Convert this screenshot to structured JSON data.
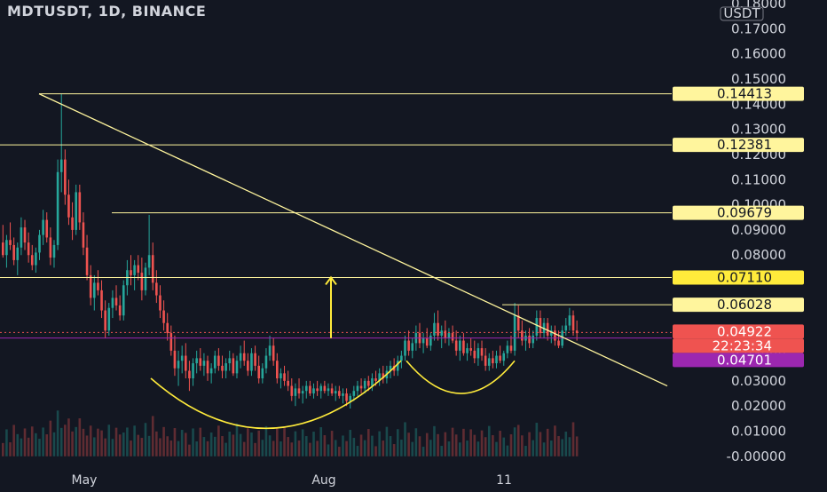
{
  "title": "MDTUSDT, 1D, BINANCE",
  "currency_badge": "USDT",
  "colors": {
    "background": "#131722",
    "up": "#26a69a",
    "down": "#ef5350",
    "drawing": "#fff59d",
    "drawing_hl": "#ffeb3b",
    "price_tag": "#ef5350",
    "purple_tag": "#9c27b0",
    "grid_text": "#d1d4dc"
  },
  "chart_data": {
    "type": "candlestick",
    "ylim": [
      -0.005,
      0.18
    ],
    "y_ticks": [
      "0.18000",
      "0.17000",
      "0.16000",
      "0.15000",
      "0.14000",
      "0.13000",
      "0.12000",
      "0.11000",
      "0.10000",
      "0.09000",
      "0.08000",
      "0.07000",
      "0.06000",
      "0.05000",
      "0.04000",
      "0.03000",
      "0.02000",
      "0.01000",
      "0.00000"
    ],
    "x_tick_labels": [
      "May",
      "Aug",
      "11"
    ],
    "price_tags": [
      {
        "label": "0.14413",
        "value": 0.14413,
        "style": "yellow"
      },
      {
        "label": "0.12381",
        "value": 0.12381,
        "style": "yellow"
      },
      {
        "label": "0.09679",
        "value": 0.09679,
        "style": "yellow"
      },
      {
        "label": "0.07110",
        "value": 0.0711,
        "style": "yellow-bright"
      },
      {
        "label": "0.06028",
        "value": 0.06028,
        "style": "yellow"
      },
      {
        "label": "0.04922",
        "value": 0.04922,
        "style": "red"
      },
      {
        "label": "22:23:34",
        "value": 0.045,
        "style": "red-sub"
      },
      {
        "label": "0.04701",
        "value": 0.04701,
        "style": "purple"
      }
    ],
    "horizontal_levels": [
      0.14413,
      0.12381,
      0.09679,
      0.0711,
      0.06028
    ],
    "current_price": 0.04922,
    "previous_level": 0.04701,
    "candles": [
      [
        0.085,
        0.092,
        0.079,
        0.08
      ],
      [
        0.08,
        0.088,
        0.075,
        0.086
      ],
      [
        0.086,
        0.093,
        0.082,
        0.084
      ],
      [
        0.084,
        0.087,
        0.076,
        0.078
      ],
      [
        0.078,
        0.085,
        0.072,
        0.083
      ],
      [
        0.083,
        0.095,
        0.08,
        0.091
      ],
      [
        0.091,
        0.094,
        0.082,
        0.085
      ],
      [
        0.085,
        0.089,
        0.077,
        0.08
      ],
      [
        0.08,
        0.084,
        0.074,
        0.076
      ],
      [
        0.076,
        0.083,
        0.073,
        0.081
      ],
      [
        0.081,
        0.09,
        0.078,
        0.088
      ],
      [
        0.088,
        0.098,
        0.084,
        0.094
      ],
      [
        0.094,
        0.097,
        0.085,
        0.087
      ],
      [
        0.087,
        0.091,
        0.076,
        0.079
      ],
      [
        0.079,
        0.086,
        0.075,
        0.084
      ],
      [
        0.084,
        0.118,
        0.082,
        0.113
      ],
      [
        0.113,
        0.144,
        0.105,
        0.118
      ],
      [
        0.118,
        0.122,
        0.1,
        0.104
      ],
      [
        0.104,
        0.11,
        0.092,
        0.095
      ],
      [
        0.095,
        0.101,
        0.086,
        0.09
      ],
      [
        0.09,
        0.108,
        0.088,
        0.105
      ],
      [
        0.105,
        0.108,
        0.09,
        0.093
      ],
      [
        0.093,
        0.097,
        0.08,
        0.083
      ],
      [
        0.083,
        0.088,
        0.07,
        0.072
      ],
      [
        0.072,
        0.076,
        0.06,
        0.063
      ],
      [
        0.063,
        0.072,
        0.058,
        0.069
      ],
      [
        0.069,
        0.074,
        0.064,
        0.066
      ],
      [
        0.066,
        0.07,
        0.055,
        0.058
      ],
      [
        0.058,
        0.062,
        0.047,
        0.05
      ],
      [
        0.05,
        0.061,
        0.048,
        0.059
      ],
      [
        0.059,
        0.066,
        0.055,
        0.063
      ],
      [
        0.063,
        0.068,
        0.058,
        0.06
      ],
      [
        0.06,
        0.064,
        0.054,
        0.056
      ],
      [
        0.056,
        0.07,
        0.054,
        0.068
      ],
      [
        0.068,
        0.078,
        0.064,
        0.074
      ],
      [
        0.074,
        0.08,
        0.068,
        0.072
      ],
      [
        0.072,
        0.078,
        0.066,
        0.076
      ],
      [
        0.076,
        0.08,
        0.07,
        0.073
      ],
      [
        0.073,
        0.079,
        0.062,
        0.066
      ],
      [
        0.066,
        0.077,
        0.064,
        0.075
      ],
      [
        0.075,
        0.096,
        0.072,
        0.08
      ],
      [
        0.08,
        0.085,
        0.066,
        0.069
      ],
      [
        0.069,
        0.074,
        0.061,
        0.064
      ],
      [
        0.064,
        0.068,
        0.055,
        0.058
      ],
      [
        0.058,
        0.062,
        0.05,
        0.053
      ],
      [
        0.053,
        0.057,
        0.046,
        0.049
      ],
      [
        0.049,
        0.052,
        0.04,
        0.042
      ],
      [
        0.042,
        0.048,
        0.032,
        0.035
      ],
      [
        0.035,
        0.042,
        0.028,
        0.038
      ],
      [
        0.038,
        0.044,
        0.033,
        0.04
      ],
      [
        0.04,
        0.045,
        0.031,
        0.034
      ],
      [
        0.034,
        0.038,
        0.026,
        0.031
      ],
      [
        0.031,
        0.039,
        0.028,
        0.037
      ],
      [
        0.037,
        0.042,
        0.033,
        0.039
      ],
      [
        0.039,
        0.043,
        0.034,
        0.036
      ],
      [
        0.036,
        0.041,
        0.032,
        0.038
      ],
      [
        0.038,
        0.04,
        0.03,
        0.033
      ],
      [
        0.033,
        0.037,
        0.029,
        0.035
      ],
      [
        0.035,
        0.042,
        0.033,
        0.04
      ],
      [
        0.04,
        0.043,
        0.034,
        0.036
      ],
      [
        0.036,
        0.04,
        0.031,
        0.034
      ],
      [
        0.034,
        0.039,
        0.031,
        0.037
      ],
      [
        0.037,
        0.042,
        0.034,
        0.039
      ],
      [
        0.039,
        0.041,
        0.032,
        0.033
      ],
      [
        0.033,
        0.04,
        0.031,
        0.038
      ],
      [
        0.038,
        0.044,
        0.035,
        0.041
      ],
      [
        0.041,
        0.046,
        0.036,
        0.038
      ],
      [
        0.038,
        0.041,
        0.032,
        0.034
      ],
      [
        0.034,
        0.043,
        0.032,
        0.041
      ],
      [
        0.041,
        0.044,
        0.034,
        0.036
      ],
      [
        0.036,
        0.04,
        0.029,
        0.031
      ],
      [
        0.031,
        0.037,
        0.029,
        0.035
      ],
      [
        0.035,
        0.043,
        0.033,
        0.04
      ],
      [
        0.04,
        0.048,
        0.038,
        0.044
      ],
      [
        0.044,
        0.047,
        0.036,
        0.038
      ],
      [
        0.038,
        0.041,
        0.029,
        0.031
      ],
      [
        0.031,
        0.035,
        0.027,
        0.033
      ],
      [
        0.033,
        0.036,
        0.028,
        0.03
      ],
      [
        0.03,
        0.034,
        0.026,
        0.028
      ],
      [
        0.028,
        0.031,
        0.022,
        0.024
      ],
      [
        0.024,
        0.029,
        0.02,
        0.027
      ],
      [
        0.027,
        0.031,
        0.023,
        0.025
      ],
      [
        0.025,
        0.028,
        0.021,
        0.026
      ],
      [
        0.026,
        0.03,
        0.023,
        0.028
      ],
      [
        0.028,
        0.03,
        0.024,
        0.025
      ],
      [
        0.025,
        0.029,
        0.023,
        0.027
      ],
      [
        0.027,
        0.03,
        0.024,
        0.026
      ],
      [
        0.026,
        0.029,
        0.023,
        0.028
      ],
      [
        0.028,
        0.03,
        0.025,
        0.026
      ],
      [
        0.026,
        0.029,
        0.024,
        0.027
      ],
      [
        0.027,
        0.029,
        0.024,
        0.025
      ],
      [
        0.025,
        0.028,
        0.022,
        0.026
      ],
      [
        0.026,
        0.028,
        0.023,
        0.024
      ],
      [
        0.024,
        0.027,
        0.021,
        0.025
      ],
      [
        0.025,
        0.027,
        0.02,
        0.022
      ],
      [
        0.022,
        0.025,
        0.019,
        0.024
      ],
      [
        0.024,
        0.028,
        0.022,
        0.026
      ],
      [
        0.026,
        0.03,
        0.024,
        0.028
      ],
      [
        0.028,
        0.031,
        0.025,
        0.027
      ],
      [
        0.027,
        0.031,
        0.025,
        0.03
      ],
      [
        0.03,
        0.032,
        0.026,
        0.028
      ],
      [
        0.028,
        0.033,
        0.026,
        0.031
      ],
      [
        0.031,
        0.034,
        0.028,
        0.03
      ],
      [
        0.03,
        0.035,
        0.028,
        0.033
      ],
      [
        0.033,
        0.036,
        0.029,
        0.031
      ],
      [
        0.031,
        0.036,
        0.029,
        0.034
      ],
      [
        0.034,
        0.038,
        0.031,
        0.036
      ],
      [
        0.036,
        0.039,
        0.032,
        0.034
      ],
      [
        0.034,
        0.04,
        0.032,
        0.038
      ],
      [
        0.038,
        0.042,
        0.035,
        0.04
      ],
      [
        0.04,
        0.048,
        0.038,
        0.046
      ],
      [
        0.046,
        0.05,
        0.04,
        0.042
      ],
      [
        0.042,
        0.047,
        0.039,
        0.045
      ],
      [
        0.045,
        0.052,
        0.042,
        0.049
      ],
      [
        0.049,
        0.053,
        0.043,
        0.045
      ],
      [
        0.045,
        0.049,
        0.041,
        0.047
      ],
      [
        0.047,
        0.051,
        0.043,
        0.044
      ],
      [
        0.044,
        0.049,
        0.042,
        0.048
      ],
      [
        0.048,
        0.057,
        0.046,
        0.053
      ],
      [
        0.053,
        0.058,
        0.046,
        0.048
      ],
      [
        0.048,
        0.052,
        0.043,
        0.05
      ],
      [
        0.05,
        0.054,
        0.045,
        0.047
      ],
      [
        0.047,
        0.051,
        0.044,
        0.049
      ],
      [
        0.049,
        0.052,
        0.045,
        0.046
      ],
      [
        0.046,
        0.05,
        0.04,
        0.042
      ],
      [
        0.042,
        0.048,
        0.038,
        0.046
      ],
      [
        0.046,
        0.049,
        0.04,
        0.041
      ],
      [
        0.041,
        0.045,
        0.038,
        0.043
      ],
      [
        0.043,
        0.047,
        0.04,
        0.042
      ],
      [
        0.042,
        0.046,
        0.037,
        0.039
      ],
      [
        0.039,
        0.045,
        0.036,
        0.043
      ],
      [
        0.043,
        0.046,
        0.038,
        0.04
      ],
      [
        0.04,
        0.043,
        0.034,
        0.036
      ],
      [
        0.036,
        0.041,
        0.034,
        0.039
      ],
      [
        0.039,
        0.042,
        0.035,
        0.037
      ],
      [
        0.037,
        0.042,
        0.035,
        0.04
      ],
      [
        0.04,
        0.044,
        0.037,
        0.038
      ],
      [
        0.038,
        0.042,
        0.036,
        0.041
      ],
      [
        0.041,
        0.046,
        0.039,
        0.044
      ],
      [
        0.044,
        0.048,
        0.041,
        0.042
      ],
      [
        0.042,
        0.061,
        0.04,
        0.056
      ],
      [
        0.056,
        0.06,
        0.047,
        0.05
      ],
      [
        0.05,
        0.054,
        0.044,
        0.046
      ],
      [
        0.046,
        0.05,
        0.042,
        0.048
      ],
      [
        0.048,
        0.051,
        0.043,
        0.045
      ],
      [
        0.045,
        0.05,
        0.043,
        0.048
      ],
      [
        0.048,
        0.058,
        0.046,
        0.055
      ],
      [
        0.055,
        0.058,
        0.047,
        0.049
      ],
      [
        0.049,
        0.055,
        0.047,
        0.053
      ],
      [
        0.053,
        0.055,
        0.046,
        0.048
      ],
      [
        0.048,
        0.052,
        0.045,
        0.05
      ],
      [
        0.05,
        0.052,
        0.044,
        0.046
      ],
      [
        0.046,
        0.05,
        0.043,
        0.044
      ],
      [
        0.044,
        0.052,
        0.043,
        0.05
      ],
      [
        0.05,
        0.055,
        0.048,
        0.052
      ],
      [
        0.052,
        0.059,
        0.05,
        0.056
      ],
      [
        0.056,
        0.058,
        0.048,
        0.05
      ],
      [
        0.05,
        0.054,
        0.046,
        0.049
      ]
    ]
  }
}
